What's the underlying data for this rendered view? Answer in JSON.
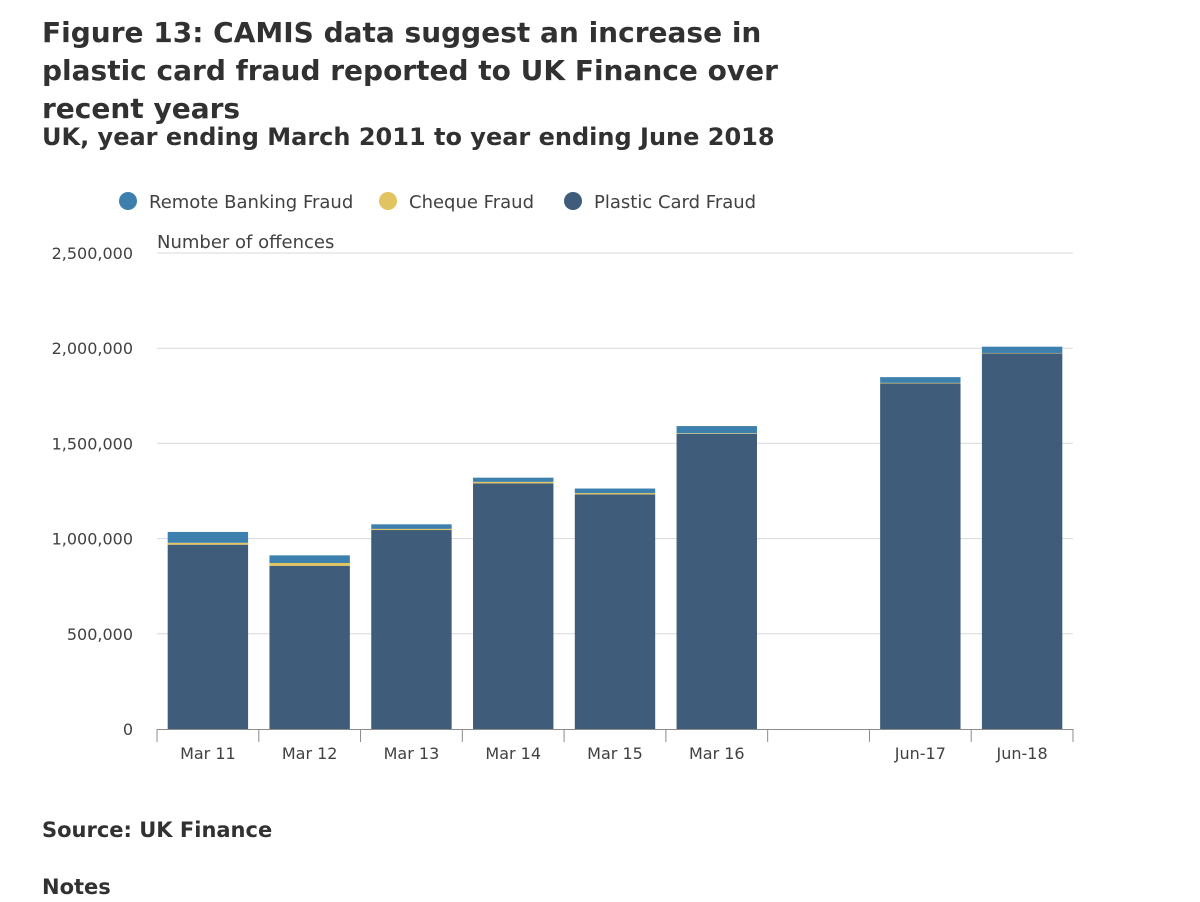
{
  "title": "Figure 13: CAMIS data suggest an increase in plastic card fraud reported to UK Finance over recent years",
  "subtitle": "UK, year ending March 2011 to year ending June 2018",
  "source": "Source: UK Finance",
  "notes_label": "Notes",
  "chart_data": {
    "type": "bar",
    "stacked": true,
    "categories": [
      "Mar 11",
      "Mar 12",
      "Mar 13",
      "Mar 14",
      "Mar 15",
      "Mar 16",
      "",
      "Jun-17",
      "Jun-18"
    ],
    "series": [
      {
        "name": "Plastic Card Fraud",
        "color": "#3f5c7b",
        "values": [
          968000,
          857000,
          1045000,
          1290000,
          1232000,
          1550000,
          null,
          1815000,
          1973000
        ]
      },
      {
        "name": "Cheque Fraud",
        "color": "#e1c35f",
        "values": [
          10000,
          15000,
          6000,
          8000,
          7000,
          3000,
          null,
          3000,
          2000
        ]
      },
      {
        "name": "Remote Banking Fraud",
        "color": "#3e80ad",
        "values": [
          57000,
          40000,
          24000,
          22000,
          24000,
          38000,
          null,
          30000,
          33000
        ]
      }
    ],
    "legend": {
      "placement": "top-left",
      "order": [
        "Remote Banking Fraud",
        "Cheque Fraud",
        "Plastic Card Fraud"
      ]
    },
    "ylabel": "Number of offences",
    "xlabel": "",
    "ylim": [
      0,
      2500000
    ],
    "yticks": [
      0,
      500000,
      1000000,
      1500000,
      2000000,
      2500000
    ],
    "ytick_labels": [
      "0",
      "500,000",
      "1,000,000",
      "1,500,000",
      "2,000,000",
      "2,500,000"
    ],
    "grid": true
  }
}
